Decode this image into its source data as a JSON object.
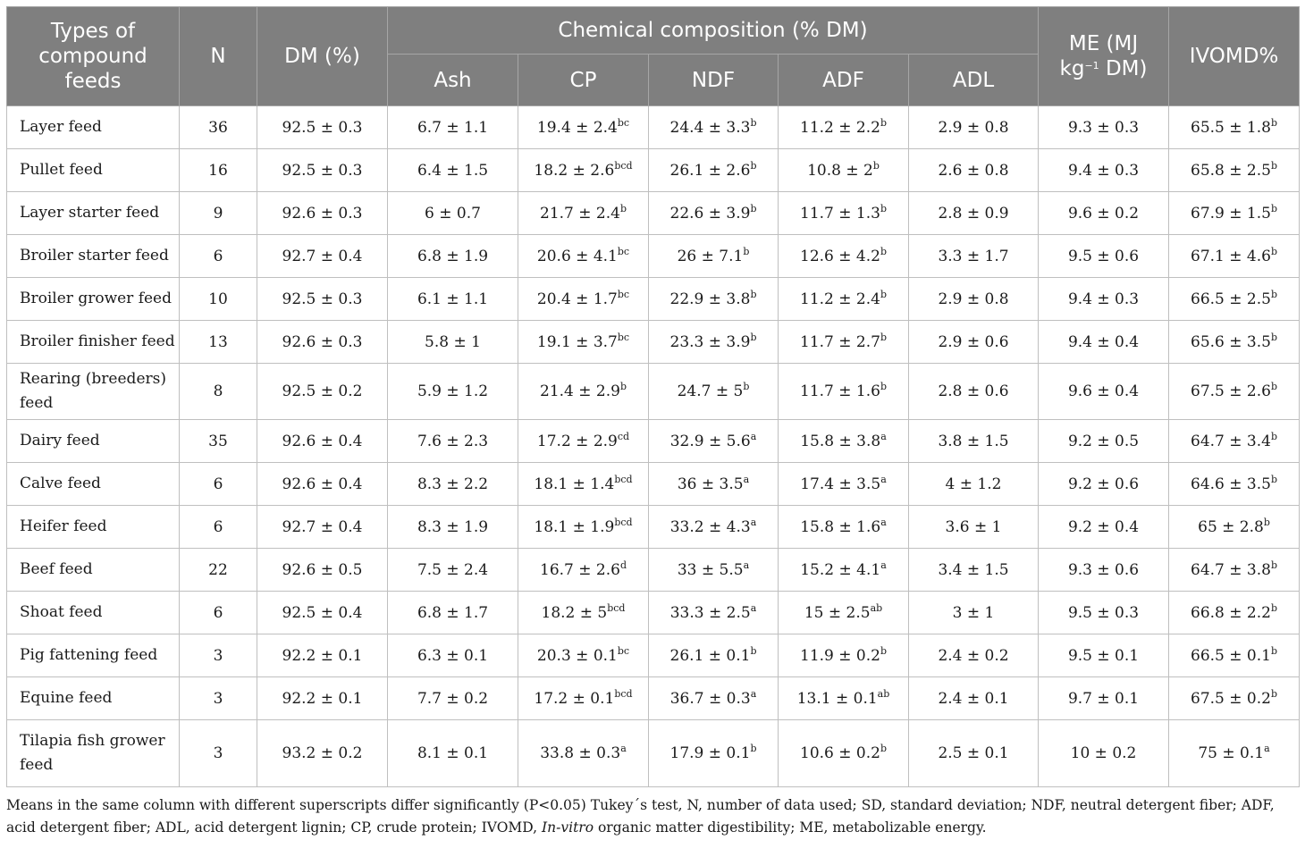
{
  "header": {
    "type": "Types of compound feeds",
    "n": "N",
    "dm": "DM (%)",
    "chem_group": "Chemical composition (% DM)",
    "ash": "Ash",
    "cp": "CP",
    "ndf": "NDF",
    "adf": "ADF",
    "adl": "ADL",
    "me_line1": "ME (MJ",
    "me_kg": "kg",
    "me_exp": "−1",
    "me_tail": " DM)",
    "ivomd": "IVOMD%"
  },
  "rows": [
    {
      "name": "Layer feed",
      "n": "36",
      "dm": "92.5 ± 0.3",
      "ash": "6.7 ± 1.1",
      "cp": "19.4 ± 2.4",
      "cp_sup": "bc",
      "ndf": "24.4 ± 3.3",
      "ndf_sup": "b",
      "adf": "11.2 ± 2.2",
      "adf_sup": "b",
      "adl": "2.9 ± 0.8",
      "me": "9.3 ± 0.3",
      "ivomd": "65.5 ± 1.8",
      "ivomd_sup": "b"
    },
    {
      "name": "Pullet feed",
      "n": "16",
      "dm": "92.5 ± 0.3",
      "ash": "6.4 ± 1.5",
      "cp": "18.2 ± 2.6",
      "cp_sup": "bcd",
      "ndf": "26.1 ± 2.6",
      "ndf_sup": "b",
      "adf": "10.8 ± 2",
      "adf_sup": "b",
      "adl": "2.6 ± 0.8",
      "me": "9.4 ± 0.3",
      "ivomd": "65.8 ± 2.5",
      "ivomd_sup": "b"
    },
    {
      "name": "Layer starter feed",
      "n": "9",
      "dm": "92.6 ± 0.3",
      "ash": "6 ± 0.7",
      "cp": "21.7 ± 2.4",
      "cp_sup": "b",
      "ndf": "22.6 ± 3.9",
      "ndf_sup": "b",
      "adf": "11.7 ± 1.3",
      "adf_sup": "b",
      "adl": "2.8 ± 0.9",
      "me": "9.6 ± 0.2",
      "ivomd": "67.9 ± 1.5",
      "ivomd_sup": "b"
    },
    {
      "name": "Broiler starter feed",
      "n": "6",
      "dm": "92.7 ± 0.4",
      "ash": "6.8 ± 1.9",
      "cp": "20.6 ± 4.1",
      "cp_sup": "bc",
      "ndf": "26 ± 7.1",
      "ndf_sup": "b",
      "adf": "12.6 ± 4.2",
      "adf_sup": "b",
      "adl": "3.3 ± 1.7",
      "me": "9.5 ± 0.6",
      "ivomd": "67.1 ± 4.6",
      "ivomd_sup": "b"
    },
    {
      "name": "Broiler grower feed",
      "n": "10",
      "dm": "92.5 ± 0.3",
      "ash": "6.1 ± 1.1",
      "cp": "20.4 ± 1.7",
      "cp_sup": "bc",
      "ndf": "22.9 ± 3.8",
      "ndf_sup": "b",
      "adf": "11.2 ± 2.4",
      "adf_sup": "b",
      "adl": "2.9 ± 0.8",
      "me": "9.4 ± 0.3",
      "ivomd": "66.5 ± 2.5",
      "ivomd_sup": "b"
    },
    {
      "name": "Broiler finisher feed",
      "n": "13",
      "dm": "92.6 ± 0.3",
      "ash": "5.8 ± 1",
      "cp": "19.1 ± 3.7",
      "cp_sup": "bc",
      "ndf": "23.3 ± 3.9",
      "ndf_sup": "b",
      "adf": "11.7 ± 2.7",
      "adf_sup": "b",
      "adl": "2.9 ± 0.6",
      "me": "9.4 ± 0.4",
      "ivomd": "65.6 ± 3.5",
      "ivomd_sup": "b"
    },
    {
      "name": "Rearing (breeders) feed",
      "n": "8",
      "dm": "92.5 ± 0.2",
      "ash": "5.9 ± 1.2",
      "cp": "21.4 ± 2.9",
      "cp_sup": "b",
      "ndf": "24.7 ± 5",
      "ndf_sup": "b",
      "adf": "11.7 ± 1.6",
      "adf_sup": "b",
      "adl": "2.8 ± 0.6",
      "me": "9.6 ± 0.4",
      "ivomd": "67.5 ± 2.6",
      "ivomd_sup": "b"
    },
    {
      "name": "Dairy feed",
      "n": "35",
      "dm": "92.6 ± 0.4",
      "ash": "7.6 ± 2.3",
      "cp": "17.2 ± 2.9",
      "cp_sup": "cd",
      "ndf": "32.9 ± 5.6",
      "ndf_sup": "a",
      "adf": "15.8 ± 3.8",
      "adf_sup": "a",
      "adl": "3.8 ± 1.5",
      "me": "9.2 ± 0.5",
      "ivomd": "64.7 ± 3.4",
      "ivomd_sup": "b"
    },
    {
      "name": "Calve feed",
      "n": "6",
      "dm": "92.6 ± 0.4",
      "ash": "8.3 ± 2.2",
      "cp": "18.1 ± 1.4",
      "cp_sup": "bcd",
      "ndf": "36 ± 3.5",
      "ndf_sup": "a",
      "adf": "17.4 ± 3.5",
      "adf_sup": "a",
      "adl": "4 ± 1.2",
      "me": "9.2 ± 0.6",
      "ivomd": "64.6 ± 3.5",
      "ivomd_sup": "b"
    },
    {
      "name": "Heifer feed",
      "n": "6",
      "dm": "92.7 ± 0.4",
      "ash": "8.3 ± 1.9",
      "cp": "18.1 ± 1.9",
      "cp_sup": "bcd",
      "ndf": "33.2 ± 4.3",
      "ndf_sup": "a",
      "adf": "15.8 ± 1.6",
      "adf_sup": "a",
      "adl": "3.6 ± 1",
      "me": "9.2 ± 0.4",
      "ivomd": "65 ± 2.8",
      "ivomd_sup": "b"
    },
    {
      "name": "Beef feed",
      "n": "22",
      "dm": "92.6 ± 0.5",
      "ash": "7.5 ± 2.4",
      "cp": "16.7 ± 2.6",
      "cp_sup": "d",
      "ndf": "33 ± 5.5",
      "ndf_sup": "a",
      "adf": "15.2 ± 4.1",
      "adf_sup": "a",
      "adl": "3.4 ± 1.5",
      "me": "9.3 ± 0.6",
      "ivomd": "64.7 ± 3.8",
      "ivomd_sup": "b"
    },
    {
      "name": "Shoat feed",
      "n": "6",
      "dm": "92.5 ± 0.4",
      "ash": "6.8 ± 1.7",
      "cp": "18.2 ± 5",
      "cp_sup": "bcd",
      "ndf": "33.3 ± 2.5",
      "ndf_sup": "a",
      "adf": "15 ± 2.5",
      "adf_sup": "ab",
      "adl": "3 ± 1",
      "me": "9.5 ± 0.3",
      "ivomd": "66.8 ± 2.2",
      "ivomd_sup": "b"
    },
    {
      "name": "Pig fattening feed",
      "n": "3",
      "dm": "92.2 ± 0.1",
      "ash": "6.3 ± 0.1",
      "cp": "20.3 ± 0.1",
      "cp_sup": "bc",
      "ndf": "26.1 ± 0.1",
      "ndf_sup": "b",
      "adf": "11.9 ± 0.2",
      "adf_sup": "b",
      "adl": "2.4 ± 0.2",
      "me": "9.5 ± 0.1",
      "ivomd": "66.5 ± 0.1",
      "ivomd_sup": "b"
    },
    {
      "name": "Equine feed",
      "n": "3",
      "dm": "92.2 ± 0.1",
      "ash": "7.7 ± 0.2",
      "cp": "17.2 ± 0.1",
      "cp_sup": "bcd",
      "ndf": "36.7 ± 0.3",
      "ndf_sup": "a",
      "adf": "13.1 ± 0.1",
      "adf_sup": "ab",
      "adl": "2.4 ± 0.1",
      "me": "9.7 ± 0.1",
      "ivomd": "67.5 ± 0.2",
      "ivomd_sup": "b"
    },
    {
      "name": "Tilapia fish grower feed",
      "n": "3",
      "dm": "93.2 ± 0.2",
      "ash": "8.1 ± 0.1",
      "cp": "33.8 ± 0.3",
      "cp_sup": "a",
      "ndf": "17.9 ± 0.1",
      "ndf_sup": "b",
      "adf": "10.6 ± 0.2",
      "adf_sup": "b",
      "adl": "2.5 ± 0.1",
      "me": "10 ± 0.2",
      "ivomd": "75 ± 0.1",
      "ivomd_sup": "a"
    }
  ],
  "footnote": {
    "part1": "Means in the same column with different superscripts differ significantly (P<0.05) Tukey´s test, N, number of data used; SD, standard deviation; NDF, neutral detergent fiber; ADF, acid detergent fiber; ADL, acid detergent lignin; CP, crude protein; IVOMD, ",
    "italic": "In-vitro",
    "part2": " organic matter digestibility; ME, metabolizable energy."
  }
}
